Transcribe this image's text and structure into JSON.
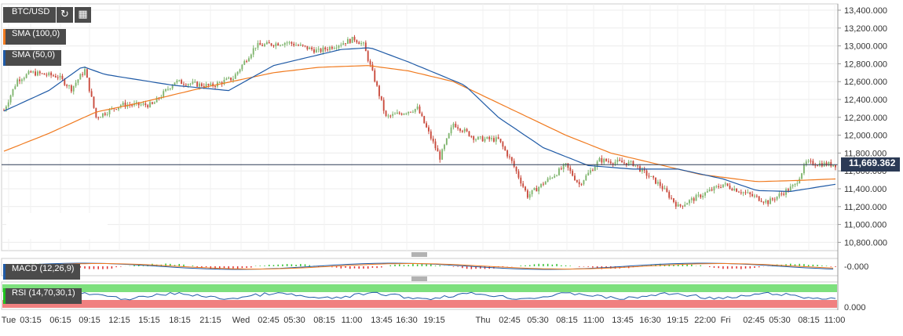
{
  "symbol": "BTC/USD",
  "indicators": [
    {
      "label": "SMA (100,0)",
      "color": "#f07a1f"
    },
    {
      "label": "SMA (50,0)",
      "color": "#1f5aa6"
    },
    {
      "label": "MACD (12,26,9)",
      "color": "#1f5aa6"
    },
    {
      "label": "RSI (14,70,30,1)",
      "color": "#1fc21f"
    }
  ],
  "icons": [
    "refresh-icon",
    "calendar-icon"
  ],
  "last_price": "11,669.362",
  "macd_axis_label": "-0.000",
  "rsi_axis_label": "0.000",
  "colors": {
    "up": "#7fb56e",
    "down": "#c94a3c",
    "sma100": "#f07a1f",
    "sma50": "#1f5aa6",
    "rsi_over": "#7de07d",
    "rsi_under": "#f08080"
  },
  "chart_data": {
    "type": "candlestick",
    "y_ticks": [
      "13,400.000",
      "13,200.000",
      "13,000.000",
      "12,800.000",
      "12,600.000",
      "12,400.000",
      "12,200.000",
      "12,000.000",
      "11,800.000",
      "11,600.000",
      "11,400.000",
      "11,200.000",
      "11,000.000",
      "10,800.000"
    ],
    "ylim": [
      10730,
      13450
    ],
    "x_ticks": [
      "Tue",
      "03:15",
      "06:15",
      "09:15",
      "12:15",
      "15:15",
      "18:15",
      "21:15",
      "Wed",
      "02:45",
      "05:30",
      "08:15",
      "11:00",
      "13:45",
      "16:30",
      "19:15",
      "Thu",
      "02:45",
      "05:30",
      "08:15",
      "11:00",
      "13:45",
      "16:30",
      "19:15",
      "22:00",
      "Fri",
      "02:45",
      "05:30",
      "08:15",
      "11:00"
    ],
    "price_keypoints": [
      [
        0,
        12280
      ],
      [
        6,
        12620
      ],
      [
        12,
        12700
      ],
      [
        24,
        12660
      ],
      [
        30,
        12520
      ],
      [
        36,
        12730
      ],
      [
        41,
        12200
      ],
      [
        52,
        12340
      ],
      [
        66,
        12340
      ],
      [
        76,
        12600
      ],
      [
        92,
        12550
      ],
      [
        102,
        12640
      ],
      [
        112,
        13000
      ],
      [
        126,
        13040
      ],
      [
        140,
        12940
      ],
      [
        156,
        13080
      ],
      [
        160,
        13010
      ],
      [
        165,
        12620
      ],
      [
        170,
        12200
      ],
      [
        184,
        12300
      ],
      [
        194,
        11750
      ],
      [
        200,
        12130
      ],
      [
        210,
        11960
      ],
      [
        220,
        11950
      ],
      [
        226,
        11700
      ],
      [
        233,
        11320
      ],
      [
        250,
        11660
      ],
      [
        256,
        11450
      ],
      [
        265,
        11720
      ],
      [
        280,
        11680
      ],
      [
        292,
        11440
      ],
      [
        300,
        11200
      ],
      [
        320,
        11450
      ],
      [
        340,
        11250
      ],
      [
        352,
        11440
      ],
      [
        357,
        11690
      ],
      [
        370,
        11669
      ]
    ],
    "sma100_keypoints": [
      [
        0,
        11820
      ],
      [
        20,
        12020
      ],
      [
        41,
        12260
      ],
      [
        60,
        12360
      ],
      [
        90,
        12540
      ],
      [
        120,
        12700
      ],
      [
        140,
        12760
      ],
      [
        162,
        12780
      ],
      [
        180,
        12720
      ],
      [
        200,
        12600
      ],
      [
        220,
        12360
      ],
      [
        250,
        12000
      ],
      [
        270,
        11800
      ],
      [
        290,
        11680
      ],
      [
        310,
        11560
      ],
      [
        335,
        11480
      ],
      [
        350,
        11490
      ],
      [
        370,
        11510
      ]
    ],
    "sma50_keypoints": [
      [
        0,
        12270
      ],
      [
        20,
        12500
      ],
      [
        35,
        12770
      ],
      [
        45,
        12680
      ],
      [
        75,
        12560
      ],
      [
        100,
        12500
      ],
      [
        120,
        12780
      ],
      [
        150,
        12960
      ],
      [
        163,
        12980
      ],
      [
        180,
        12820
      ],
      [
        205,
        12560
      ],
      [
        220,
        12200
      ],
      [
        240,
        11860
      ],
      [
        260,
        11660
      ],
      [
        280,
        11620
      ],
      [
        300,
        11620
      ],
      [
        320,
        11510
      ],
      [
        335,
        11380
      ],
      [
        350,
        11370
      ],
      [
        370,
        11450
      ]
    ],
    "n_candles": 371,
    "rsi_bands": [
      30,
      70
    ]
  }
}
